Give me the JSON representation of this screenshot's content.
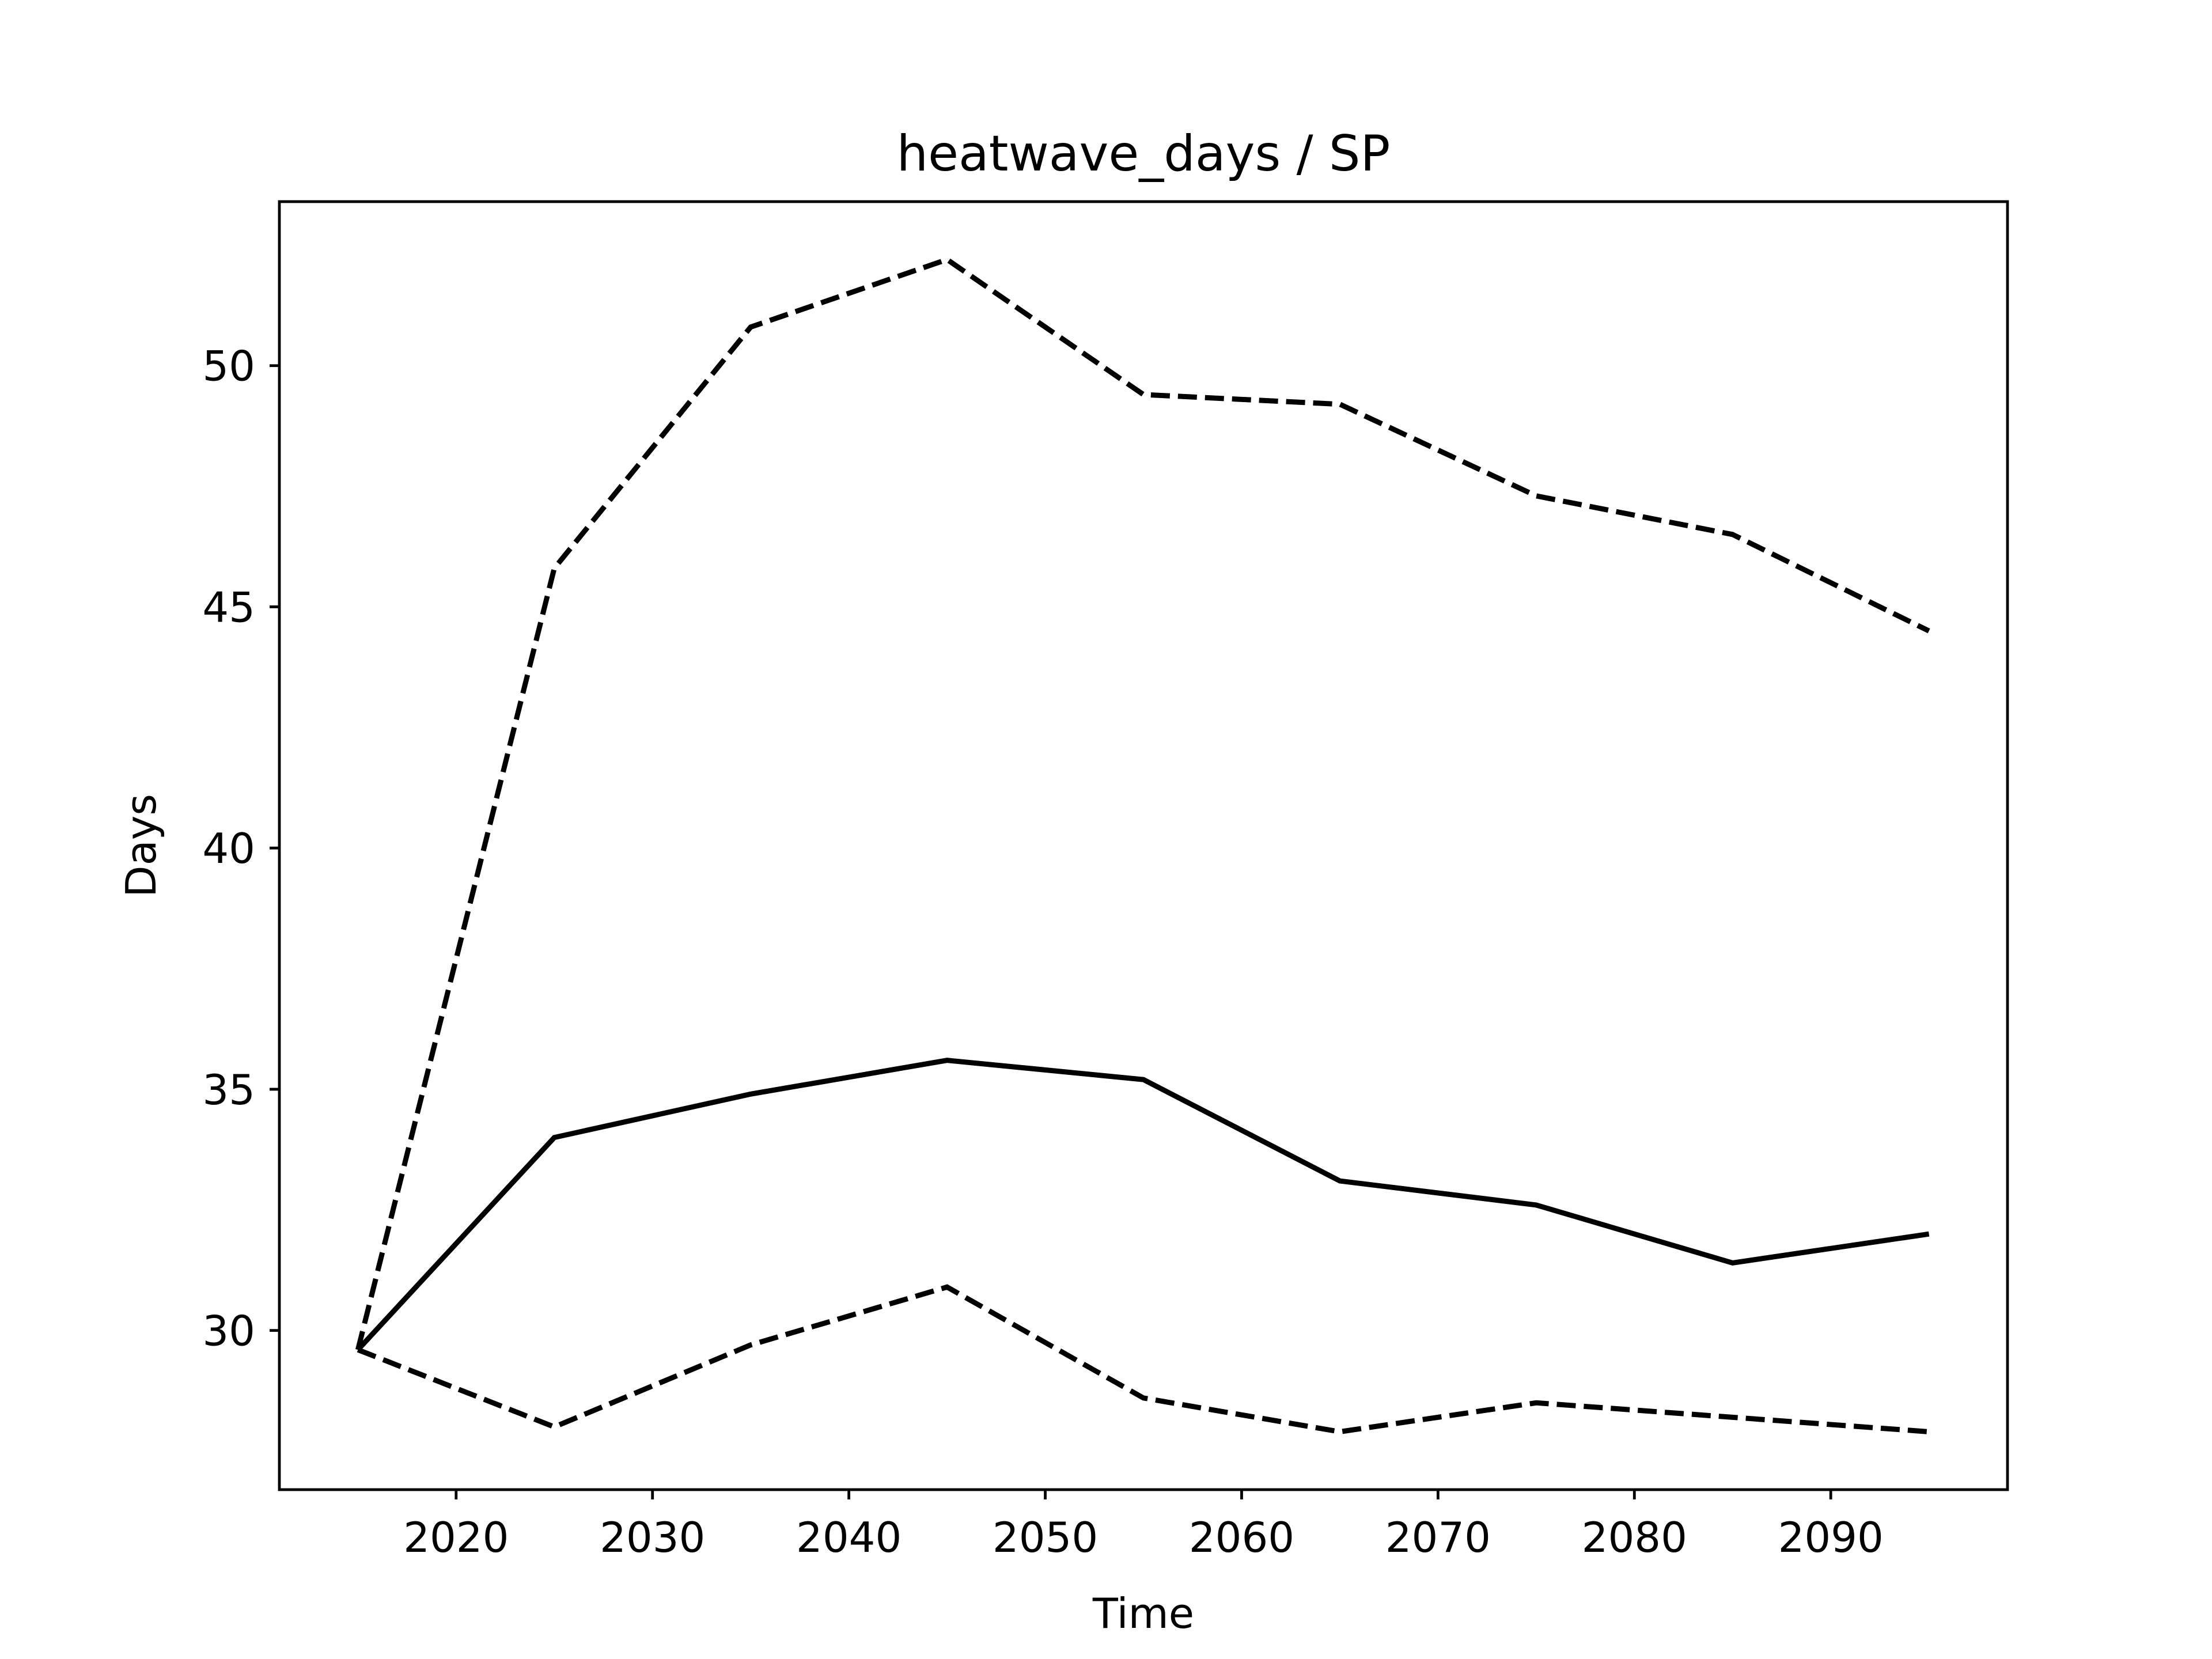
{
  "chart_data": {
    "type": "line",
    "title": "heatwave_days / SP",
    "xlabel": "Time",
    "ylabel": "Days",
    "xlim": [
      2011,
      2099
    ],
    "ylim": [
      26.7,
      53.4
    ],
    "xticks": [
      2020,
      2030,
      2040,
      2050,
      2060,
      2070,
      2080,
      2090
    ],
    "yticks": [
      30,
      35,
      40,
      45,
      50
    ],
    "grid": false,
    "x": [
      2015,
      2025,
      2035,
      2045,
      2055,
      2065,
      2075,
      2085,
      2095
    ],
    "series": [
      {
        "style": "dashed",
        "color": "#000000",
        "values": [
          29.6,
          45.8,
          50.8,
          52.2,
          49.4,
          49.2,
          47.3,
          46.5,
          44.5
        ]
      },
      {
        "style": "solid",
        "color": "#000000",
        "values": [
          29.6,
          34.0,
          34.9,
          35.6,
          35.2,
          33.1,
          32.6,
          31.4,
          32.0
        ]
      },
      {
        "style": "dashed",
        "color": "#000000",
        "values": [
          29.6,
          28.0,
          29.7,
          30.9,
          28.6,
          27.9,
          28.5,
          28.2,
          27.9
        ]
      }
    ]
  }
}
